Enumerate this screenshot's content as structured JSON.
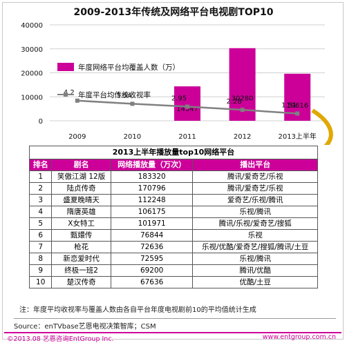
{
  "chart_data": {
    "type": "bar",
    "title": "2009-2013年传统及网络平台电视剧TOP10",
    "categories": [
      "2009",
      "2010",
      "2011",
      "2012",
      "2013上半年"
    ],
    "series": [
      {
        "name": "年度网络平台均覆盖人数（万）",
        "type": "bar",
        "values": [
          null,
          null,
          14347,
          30280,
          19616
        ],
        "color": "#cc0099"
      },
      {
        "name": "年度平台均传统收视率",
        "type": "line",
        "values": [
          4.2,
          3.54,
          2.95,
          2.28,
          1.51
        ],
        "color": "#808080"
      }
    ],
    "y_ticks": [
      "0",
      "10000",
      "20000",
      "30000",
      "40000"
    ],
    "ylim": [
      0,
      40000
    ],
    "line_ylim": [
      0,
      20
    ],
    "grid": true,
    "legend_position": "center-left"
  },
  "table": {
    "title": "2013上半年播放量top10网络平台",
    "headers": [
      "排名",
      "剧名",
      "网络播放量（万次）",
      "播出平台"
    ],
    "rows": [
      [
        "1",
        "笑傲江湖 12版",
        "183320",
        "腾讯/爱奇艺/乐视"
      ],
      [
        "2",
        "陆贞传奇",
        "170796",
        "腾讯/爱奇艺/乐视"
      ],
      [
        "3",
        "盛夏晚晴天",
        "112248",
        "爱奇艺/乐视/腾讯"
      ],
      [
        "4",
        "隋唐英雄",
        "106175",
        "乐视/腾讯"
      ],
      [
        "5",
        "X女特工",
        "101971",
        "腾讯/乐视/爱奇艺/搜狐"
      ],
      [
        "6",
        "甄嬛传",
        "76844",
        "乐视"
      ],
      [
        "7",
        "枪花",
        "72636",
        "乐视/优酷/爱奇艺/搜狐/腾讯/土豆"
      ],
      [
        "8",
        "新恋爱时代",
        "72595",
        "乐视/腾讯"
      ],
      [
        "9",
        "终极一班2",
        "69200",
        "腾讯/优酷"
      ],
      [
        "10",
        "楚汉传奇",
        "67636",
        "优酷/土豆"
      ]
    ]
  },
  "note": "注：年度平均收视率与覆盖人数由各自平台年度电视剧前10的平均值统计生成",
  "source": "Source：enTVbase艺恩电视决策智库；CSM",
  "copyright": "©2013.08  艺恩咨询EntGroup Inc.",
  "url": "www.entgroup.com.cn",
  "colors": {
    "accent": "#cc0099",
    "line": "#808080",
    "arrow": "#e0a800"
  }
}
